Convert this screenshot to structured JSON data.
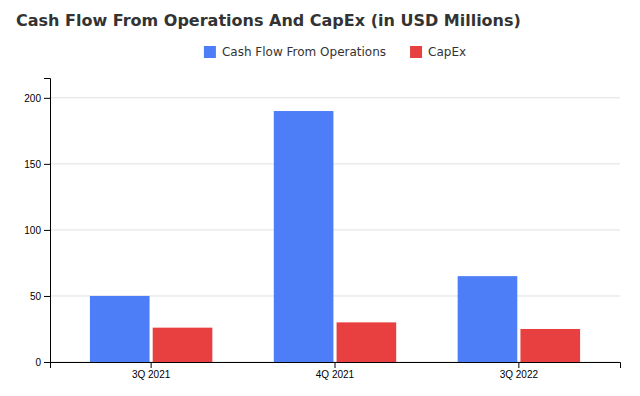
{
  "chart_data": {
    "type": "bar",
    "title": "Cash Flow From Operations And CapEx (in USD Millions)",
    "categories": [
      "3Q 2021",
      "4Q 2021",
      "3Q 2022"
    ],
    "series": [
      {
        "name": "Cash Flow From Operations",
        "color": "#4d7ef7",
        "values": [
          50,
          190,
          65
        ]
      },
      {
        "name": "CapEx",
        "color": "#e84040",
        "values": [
          26,
          30,
          25
        ]
      }
    ],
    "ylim": [
      0,
      215
    ],
    "yticks": [
      0,
      50,
      100,
      150,
      200
    ],
    "grid": true,
    "legend": "top"
  }
}
